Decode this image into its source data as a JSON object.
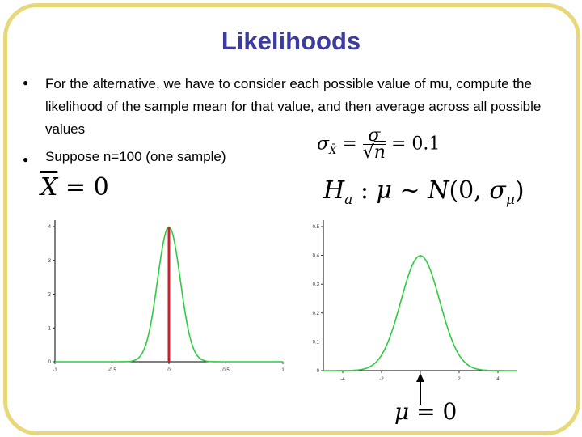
{
  "slide": {
    "title": "Likelihoods",
    "bullets": [
      "For the alternative, we have to consider each possible value of mu, compute the likelihood of the sample mean for that value, and then average across all possible values",
      "Suppose n=100 (one sample)"
    ],
    "bullet_symbol": "●",
    "equations": {
      "sigma_xbar": "σX̄ = σ/√n = 0.1",
      "xbar": "X̄ = 0",
      "h_alt": "Hₐ : μ ~ N(0, σμ)",
      "mu": "μ = 0"
    },
    "colors": {
      "title": "#3c3ca0",
      "frame": "#e8d87a",
      "curve": "#2ecc40",
      "marker": "#cc1f2f"
    }
  },
  "chart_data": [
    {
      "type": "line",
      "title": "",
      "xlabel": "",
      "ylabel": "",
      "xlim": [
        -1,
        1
      ],
      "ylim": [
        0,
        4
      ],
      "x_ticks": [
        "-1",
        "-0.5",
        "0",
        "0.5",
        "1"
      ],
      "y_ticks": [
        "0",
        "1",
        "2",
        "3",
        "4"
      ],
      "grid": false,
      "series": [
        {
          "distribution": "normal",
          "mean": 0,
          "sd": 0.1,
          "peak": 3.99
        }
      ],
      "marker_line": {
        "x": 0,
        "y_from": 0,
        "y_to": 3.99
      }
    },
    {
      "type": "line",
      "title": "",
      "xlabel": "",
      "ylabel": "",
      "xlim": [
        -5,
        5
      ],
      "ylim": [
        0,
        0.5
      ],
      "x_ticks": [
        "-4",
        "-2",
        "0",
        "2",
        "4"
      ],
      "y_ticks": [
        "0",
        "0.1",
        "0.2",
        "0.3",
        "0.4",
        "0.5"
      ],
      "grid": false,
      "series": [
        {
          "distribution": "normal",
          "mean": 0,
          "sd": 1,
          "peak": 0.399
        }
      ],
      "arrow_at_x": 0
    }
  ]
}
